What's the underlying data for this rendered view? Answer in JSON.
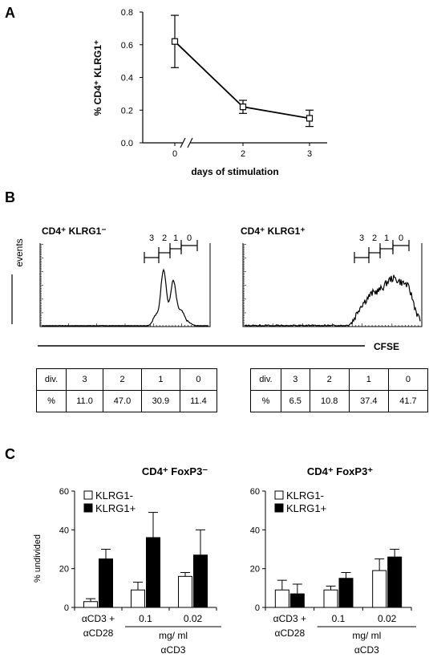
{
  "panels": {
    "a_label": "A",
    "b_label": "B",
    "c_label": "C"
  },
  "chart_data": [
    {
      "id": "panelA",
      "type": "line",
      "x": [
        "0",
        "2",
        "3"
      ],
      "y": [
        0.62,
        0.22,
        0.15
      ],
      "err": [
        0.16,
        0.04,
        0.05
      ],
      "xlabel": "days of stimulation",
      "ylabel": "% CD4⁺ KLRG1⁺",
      "ylim": [
        0,
        0.8
      ],
      "yticks": [
        "0.0",
        "0.2",
        "0.4",
        "0.6",
        "0.8"
      ],
      "xticks": [
        "0",
        "2",
        "3"
      ],
      "axis_break": true,
      "grid": false
    },
    {
      "id": "panelC_left",
      "type": "bar",
      "title": "CD4⁺ FoxP3⁻",
      "ylabel": "% undivided",
      "ylim": [
        0,
        60
      ],
      "yticks": [
        "0",
        "20",
        "40",
        "60"
      ],
      "categories": [
        "αCD3 + αCD28",
        "0.1",
        "0.02"
      ],
      "category_lines": [
        [
          "αCD3 +",
          "αCD28"
        ],
        [
          "0.1"
        ],
        [
          "0.02"
        ]
      ],
      "group_label_line1": "mg/ ml",
      "group_label_line2": "αCD3",
      "series": [
        {
          "name": "KLRG1-",
          "values": [
            3,
            9,
            16
          ],
          "err": [
            1.5,
            4,
            2
          ],
          "color": "#ffffff"
        },
        {
          "name": "KLRG1+",
          "values": [
            25,
            36,
            27
          ],
          "err": [
            5,
            13,
            13
          ],
          "color": "#000000"
        }
      ],
      "legend": "top-left"
    },
    {
      "id": "panelC_right",
      "type": "bar",
      "title": "CD4⁺ FoxP3⁺",
      "ylim": [
        0,
        60
      ],
      "yticks": [
        "0",
        "20",
        "40",
        "60"
      ],
      "categories": [
        "αCD3 + αCD28",
        "0.1",
        "0.02"
      ],
      "category_lines": [
        [
          "αCD3 +",
          "αCD28"
        ],
        [
          "0.1"
        ],
        [
          "0.02"
        ]
      ],
      "group_label_line1": "mg/ ml",
      "group_label_line2": "αCD3",
      "series": [
        {
          "name": "KLRG1-",
          "values": [
            9,
            9,
            19
          ],
          "err": [
            5,
            2,
            6
          ],
          "color": "#ffffff"
        },
        {
          "name": "KLRG1+",
          "values": [
            7,
            15,
            26
          ],
          "err": [
            5,
            3,
            4
          ],
          "color": "#000000"
        }
      ],
      "legend": "top-left"
    }
  ],
  "histograms": {
    "events_label": "events",
    "cfse_label": "CFSE",
    "left": {
      "title": "CD4⁺ KLRG1⁻",
      "division_labels": [
        "3",
        "2",
        "1",
        "0"
      ]
    },
    "right": {
      "title": "CD4⁺ KLRG1⁺",
      "division_labels": [
        "3",
        "2",
        "1",
        "0"
      ]
    }
  },
  "tables": {
    "left": {
      "row1": [
        "div.",
        "3",
        "2",
        "1",
        "0"
      ],
      "row2": [
        "%",
        "11.0",
        "47.0",
        "30.9",
        "11.4"
      ]
    },
    "right": {
      "row1": [
        "div.",
        "3",
        "2",
        "1",
        "0"
      ],
      "row2": [
        "%",
        "6.5",
        "10.8",
        "37.4",
        "41.7"
      ]
    }
  }
}
